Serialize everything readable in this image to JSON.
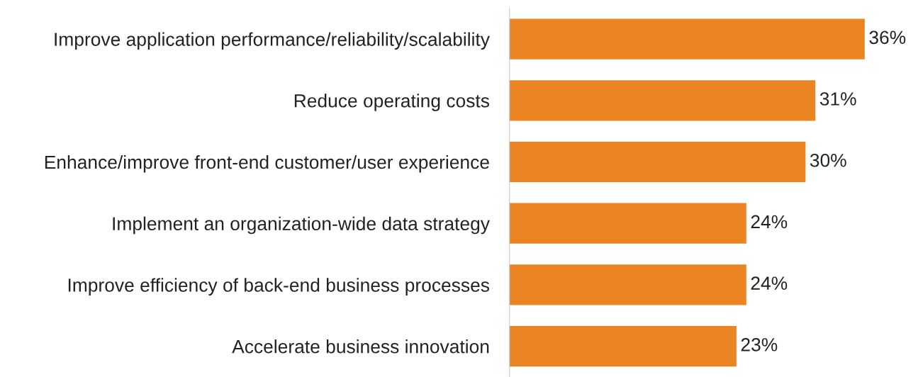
{
  "chart_data": {
    "type": "bar",
    "orientation": "horizontal",
    "categories": [
      "Improve application performance/reliability/scalability",
      "Reduce operating costs",
      "Enhance/improve front-end customer/user experience",
      "Implement an organization-wide data strategy",
      "Improve efficiency of back-end business processes",
      "Accelerate business innovation"
    ],
    "values": [
      36,
      31,
      30,
      24,
      24,
      23
    ],
    "value_labels": [
      "36%",
      "31%",
      "30%",
      "24%",
      "24%",
      "23%"
    ],
    "color": "#eb8423",
    "grid": false,
    "legend": false,
    "tick_labels": "y"
  }
}
